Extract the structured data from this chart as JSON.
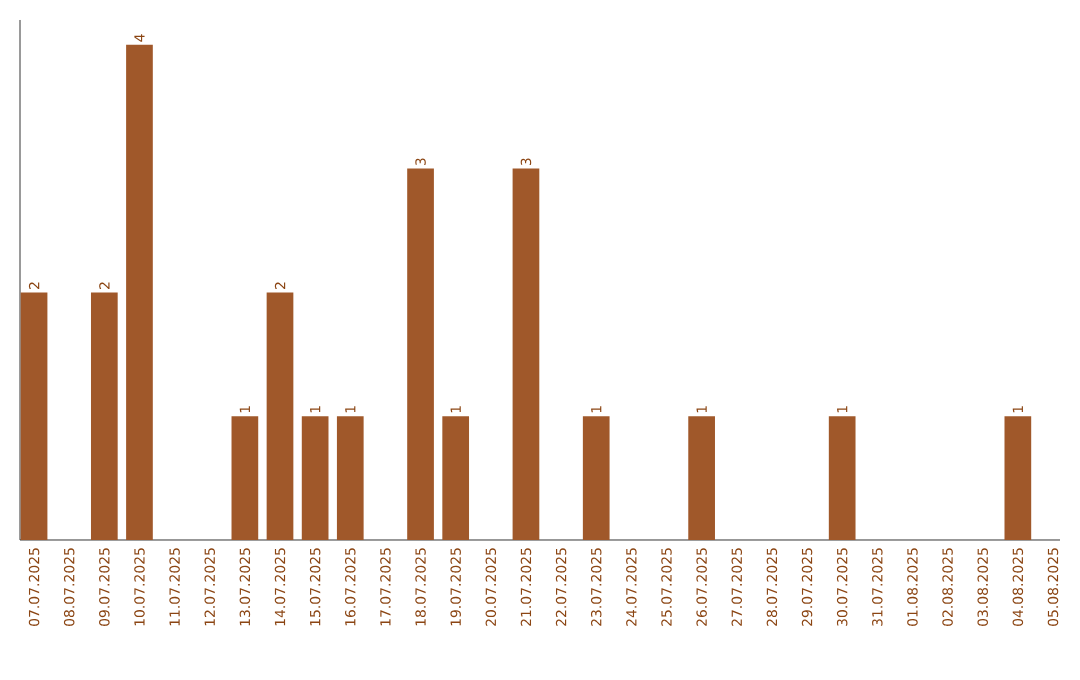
{
  "chart_data": {
    "type": "bar",
    "categories": [
      "07.07.2025",
      "08.07.2025",
      "09.07.2025",
      "10.07.2025",
      "11.07.2025",
      "12.07.2025",
      "13.07.2025",
      "14.07.2025",
      "15.07.2025",
      "16.07.2025",
      "17.07.2025",
      "18.07.2025",
      "19.07.2025",
      "20.07.2025",
      "21.07.2025",
      "22.07.2025",
      "23.07.2025",
      "24.07.2025",
      "25.07.2025",
      "26.07.2025",
      "27.07.2025",
      "28.07.2025",
      "29.07.2025",
      "30.07.2025",
      "31.07.2025",
      "01.08.2025",
      "02.08.2025",
      "03.08.2025",
      "04.08.2025",
      "05.08.2025"
    ],
    "values": [
      2,
      0,
      2,
      4,
      0,
      0,
      1,
      2,
      1,
      1,
      0,
      3,
      1,
      0,
      3,
      0,
      1,
      0,
      0,
      1,
      0,
      0,
      0,
      1,
      0,
      0,
      0,
      0,
      1,
      0
    ],
    "value_labels": [
      "2",
      null,
      "2",
      "4",
      null,
      null,
      "1",
      "2",
      "1",
      "1",
      null,
      "3",
      "1",
      null,
      "3",
      null,
      "1",
      null,
      null,
      "1",
      null,
      null,
      null,
      "1",
      null,
      null,
      null,
      null,
      "1",
      null
    ],
    "color": "#a0582a",
    "ylim": [
      0,
      4.2
    ],
    "tick_labels": "x"
  }
}
